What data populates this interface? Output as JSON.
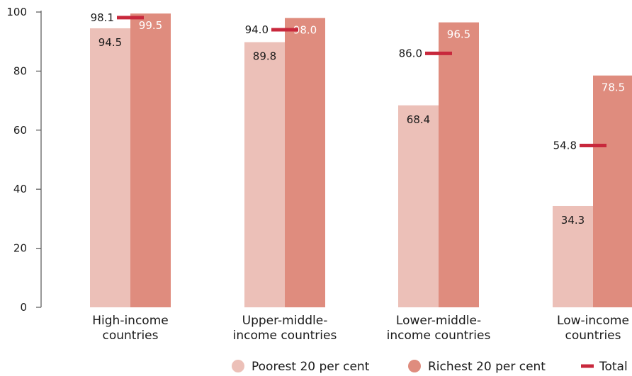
{
  "chart_data": {
    "type": "bar",
    "categories": [
      [
        "High-income",
        "countries"
      ],
      [
        "Upper-middle-",
        "income countries"
      ],
      [
        "Lower-middle-",
        "income countries"
      ],
      [
        "Low-income",
        "countries"
      ]
    ],
    "series": [
      {
        "name": "Poorest 20 per cent",
        "values": [
          94.5,
          89.8,
          68.4,
          34.3
        ],
        "color": "#ecc0b8"
      },
      {
        "name": "Richest 20 per cent",
        "values": [
          99.5,
          98.0,
          96.5,
          78.5
        ],
        "color": "#df8c7e"
      }
    ],
    "total": {
      "name": "Total",
      "values": [
        98.1,
        94.0,
        86.0,
        54.8
      ],
      "color": "#c8283c"
    },
    "ylim": [
      0,
      100
    ],
    "yticks": [
      0,
      20,
      40,
      60,
      80,
      100
    ],
    "grid": false,
    "legend": "bottom",
    "value_label_colors": {
      "poorest": "#1a1a1a",
      "richest": "#ffffff",
      "total": "#1a1a1a"
    }
  }
}
